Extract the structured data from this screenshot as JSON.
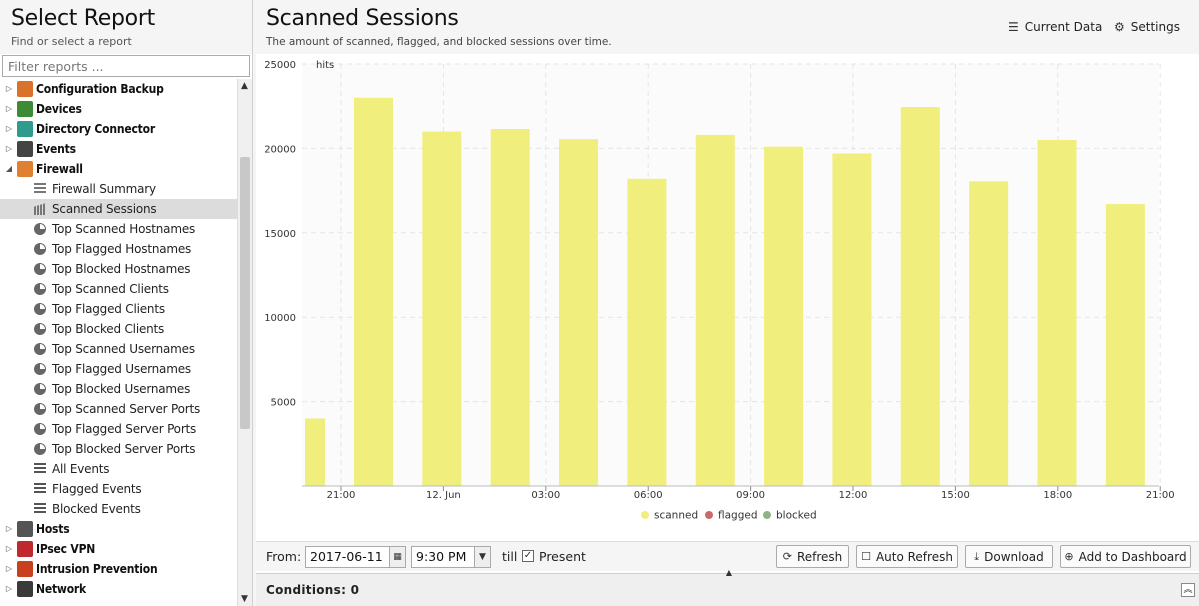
{
  "left_panel": {
    "title": "Select Report",
    "subtitle": "Find or select a report",
    "filter_placeholder": "Filter reports ...",
    "categories_top": [
      {
        "label": "Configuration Backup",
        "icon": "configuration-backup-icon",
        "color": "#d9722b",
        "expanded": false
      },
      {
        "label": "Devices",
        "icon": "devices-icon",
        "color": "#3e8a35",
        "expanded": false
      },
      {
        "label": "Directory Connector",
        "icon": "directory-connector-icon",
        "color": "#2e9b8c",
        "expanded": false
      },
      {
        "label": "Events",
        "icon": "events-icon",
        "color": "#444444",
        "expanded": false
      },
      {
        "label": "Firewall",
        "icon": "firewall-icon",
        "color": "#e08030",
        "expanded": true
      }
    ],
    "firewall_reports": [
      {
        "label": "Firewall Summary",
        "icon": "text-lines-icon"
      },
      {
        "label": "Scanned Sessions",
        "icon": "bar-chart-icon",
        "selected": true
      },
      {
        "label": "Top Scanned Hostnames",
        "icon": "pie-chart-icon"
      },
      {
        "label": "Top Flagged Hostnames",
        "icon": "pie-chart-icon"
      },
      {
        "label": "Top Blocked Hostnames",
        "icon": "pie-chart-icon"
      },
      {
        "label": "Top Scanned Clients",
        "icon": "pie-chart-icon"
      },
      {
        "label": "Top Flagged Clients",
        "icon": "pie-chart-icon"
      },
      {
        "label": "Top Blocked Clients",
        "icon": "pie-chart-icon"
      },
      {
        "label": "Top Scanned Usernames",
        "icon": "pie-chart-icon"
      },
      {
        "label": "Top Flagged Usernames",
        "icon": "pie-chart-icon"
      },
      {
        "label": "Top Blocked Usernames",
        "icon": "pie-chart-icon"
      },
      {
        "label": "Top Scanned Server Ports",
        "icon": "pie-chart-icon"
      },
      {
        "label": "Top Flagged Server Ports",
        "icon": "pie-chart-icon"
      },
      {
        "label": "Top Blocked Server Ports",
        "icon": "pie-chart-icon"
      },
      {
        "label": "All Events",
        "icon": "list-icon"
      },
      {
        "label": "Flagged Events",
        "icon": "list-icon"
      },
      {
        "label": "Blocked Events",
        "icon": "list-icon"
      }
    ],
    "categories_bottom": [
      {
        "label": "Hosts",
        "icon": "hosts-icon",
        "color": "#555555",
        "expanded": false
      },
      {
        "label": "IPsec VPN",
        "icon": "ipsec-vpn-icon",
        "color": "#c0282d",
        "expanded": false
      },
      {
        "label": "Intrusion Prevention",
        "icon": "intrusion-prevention-icon",
        "color": "#c94020",
        "expanded": false
      },
      {
        "label": "Network",
        "icon": "network-icon",
        "color": "#3a3a3a",
        "expanded": false
      }
    ]
  },
  "main": {
    "title": "Scanned Sessions",
    "subtitle": "The amount of scanned, flagged, and blocked sessions over time.",
    "current_data_label": "Current Data",
    "settings_label": "Settings"
  },
  "chart_data": {
    "type": "bar",
    "ylabel": "hits",
    "ylim": [
      0,
      25000
    ],
    "yticks": [
      5000,
      10000,
      15000,
      20000,
      25000
    ],
    "x_tick_labels": [
      "21:00",
      "12. Jun",
      "03:00",
      "06:00",
      "09:00",
      "12:00",
      "15:00",
      "18:00",
      "21:00"
    ],
    "series": [
      {
        "name": "scanned",
        "color": "#f0ee7c",
        "values": [
          4000,
          23000,
          21000,
          21150,
          20550,
          18200,
          20800,
          20100,
          19700,
          22450,
          18050,
          20500,
          16700
        ]
      },
      {
        "name": "flagged",
        "color": "#c8696b",
        "values": [
          0,
          0,
          0,
          0,
          0,
          0,
          0,
          0,
          0,
          0,
          0,
          0,
          0
        ]
      },
      {
        "name": "blocked",
        "color": "#8fb286",
        "values": [
          0,
          0,
          0,
          0,
          0,
          0,
          0,
          0,
          0,
          0,
          0,
          0,
          0
        ]
      }
    ],
    "grid": true,
    "legend": "bottom-center"
  },
  "toolbar": {
    "from_label": "From:",
    "date_value": "2017-06-11",
    "time_value": "9:30 PM",
    "till_label": "till",
    "present_label": "Present",
    "refresh_label": "Refresh",
    "auto_refresh_label": "Auto Refresh",
    "download_label": "Download",
    "add_dashboard_label": "Add to Dashboard"
  },
  "conditions": {
    "label": "Conditions: 0"
  }
}
